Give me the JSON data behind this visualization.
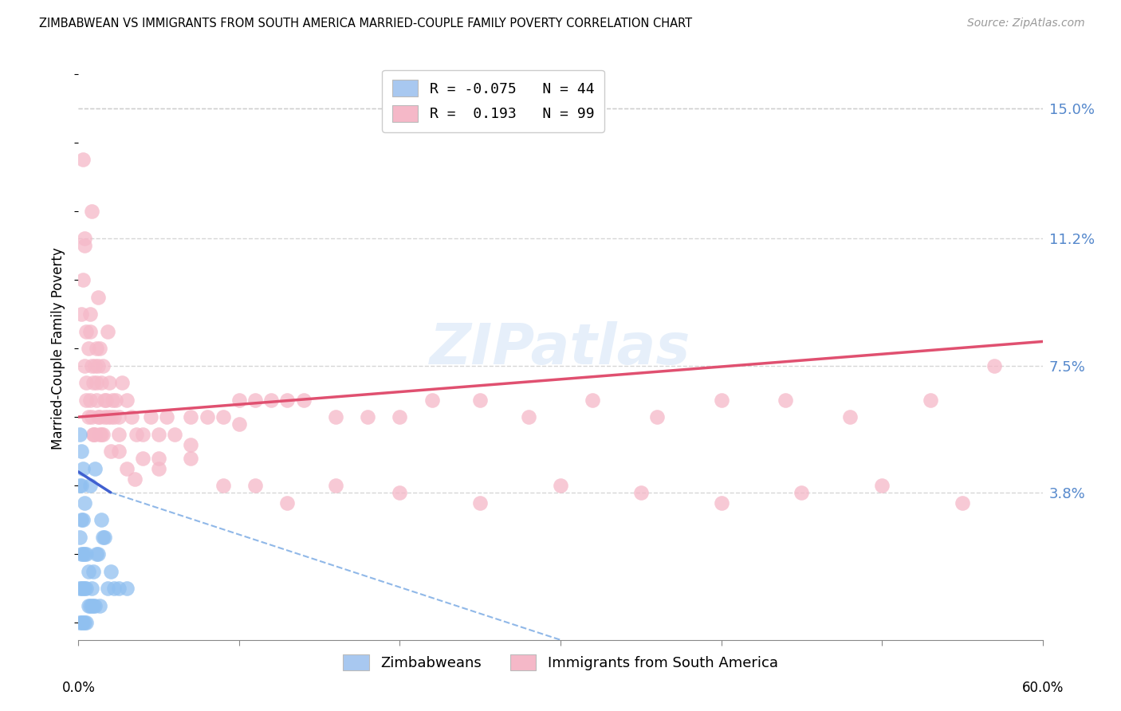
{
  "title": "ZIMBABWEAN VS IMMIGRANTS FROM SOUTH AMERICA MARRIED-COUPLE FAMILY POVERTY CORRELATION CHART",
  "source": "Source: ZipAtlas.com",
  "ylabel": "Married-Couple Family Poverty",
  "yticks": [
    0.0,
    0.038,
    0.075,
    0.112,
    0.15
  ],
  "ytick_labels": [
    "",
    "3.8%",
    "7.5%",
    "11.2%",
    "15.0%"
  ],
  "xlim": [
    0.0,
    0.6
  ],
  "ylim": [
    -0.005,
    0.165
  ],
  "dot_color_zim": "#90c0f0",
  "dot_color_sa": "#f5b8c8",
  "line_color_zim_solid": "#4060d0",
  "line_color_zim_dash": "#90b8e8",
  "line_color_sa": "#e05070",
  "grid_color": "#cccccc",
  "zim_x": [
    0.001,
    0.001,
    0.001,
    0.001,
    0.001,
    0.002,
    0.002,
    0.002,
    0.002,
    0.002,
    0.002,
    0.003,
    0.003,
    0.003,
    0.003,
    0.003,
    0.004,
    0.004,
    0.004,
    0.004,
    0.005,
    0.005,
    0.005,
    0.006,
    0.006,
    0.007,
    0.007,
    0.008,
    0.008,
    0.009,
    0.009,
    0.01,
    0.01,
    0.011,
    0.012,
    0.013,
    0.014,
    0.015,
    0.016,
    0.018,
    0.02,
    0.022,
    0.025,
    0.03
  ],
  "zim_y": [
    0.0,
    0.01,
    0.025,
    0.04,
    0.055,
    0.0,
    0.01,
    0.02,
    0.03,
    0.04,
    0.05,
    0.0,
    0.01,
    0.02,
    0.03,
    0.045,
    0.0,
    0.01,
    0.02,
    0.035,
    0.0,
    0.01,
    0.02,
    0.005,
    0.015,
    0.005,
    0.04,
    0.005,
    0.01,
    0.005,
    0.015,
    0.005,
    0.045,
    0.02,
    0.02,
    0.005,
    0.03,
    0.025,
    0.025,
    0.01,
    0.015,
    0.01,
    0.01,
    0.01
  ],
  "sa_x": [
    0.002,
    0.003,
    0.004,
    0.004,
    0.005,
    0.005,
    0.006,
    0.006,
    0.007,
    0.007,
    0.008,
    0.008,
    0.009,
    0.009,
    0.01,
    0.01,
    0.011,
    0.011,
    0.012,
    0.012,
    0.013,
    0.013,
    0.014,
    0.014,
    0.015,
    0.015,
    0.016,
    0.017,
    0.018,
    0.019,
    0.02,
    0.021,
    0.022,
    0.023,
    0.025,
    0.027,
    0.03,
    0.033,
    0.036,
    0.04,
    0.045,
    0.05,
    0.055,
    0.06,
    0.07,
    0.08,
    0.09,
    0.1,
    0.11,
    0.12,
    0.13,
    0.14,
    0.16,
    0.18,
    0.2,
    0.22,
    0.25,
    0.28,
    0.32,
    0.36,
    0.4,
    0.44,
    0.48,
    0.53,
    0.57,
    0.003,
    0.005,
    0.007,
    0.009,
    0.011,
    0.013,
    0.016,
    0.02,
    0.025,
    0.03,
    0.04,
    0.05,
    0.07,
    0.09,
    0.11,
    0.13,
    0.16,
    0.2,
    0.25,
    0.3,
    0.35,
    0.4,
    0.45,
    0.5,
    0.55,
    0.004,
    0.008,
    0.012,
    0.018,
    0.025,
    0.035,
    0.05,
    0.07,
    0.1
  ],
  "sa_y": [
    0.09,
    0.1,
    0.075,
    0.11,
    0.085,
    0.065,
    0.08,
    0.06,
    0.085,
    0.065,
    0.075,
    0.06,
    0.07,
    0.055,
    0.075,
    0.055,
    0.065,
    0.08,
    0.06,
    0.075,
    0.06,
    0.08,
    0.055,
    0.07,
    0.055,
    0.075,
    0.06,
    0.065,
    0.06,
    0.07,
    0.06,
    0.065,
    0.06,
    0.065,
    0.06,
    0.07,
    0.065,
    0.06,
    0.055,
    0.055,
    0.06,
    0.055,
    0.06,
    0.055,
    0.06,
    0.06,
    0.06,
    0.065,
    0.065,
    0.065,
    0.065,
    0.065,
    0.06,
    0.06,
    0.06,
    0.065,
    0.065,
    0.06,
    0.065,
    0.06,
    0.065,
    0.065,
    0.06,
    0.065,
    0.075,
    0.135,
    0.07,
    0.09,
    0.055,
    0.07,
    0.055,
    0.065,
    0.05,
    0.055,
    0.045,
    0.048,
    0.045,
    0.048,
    0.04,
    0.04,
    0.035,
    0.04,
    0.038,
    0.035,
    0.04,
    0.038,
    0.035,
    0.038,
    0.04,
    0.035,
    0.112,
    0.12,
    0.095,
    0.085,
    0.05,
    0.042,
    0.048,
    0.052,
    0.058
  ],
  "sa_trend_x0": 0.0,
  "sa_trend_y0": 0.06,
  "sa_trend_x1": 0.6,
  "sa_trend_y1": 0.082,
  "zim_trend_solid_x0": 0.0,
  "zim_trend_solid_y0": 0.044,
  "zim_trend_solid_x1": 0.02,
  "zim_trend_solid_y1": 0.038,
  "zim_trend_dash_x0": 0.02,
  "zim_trend_dash_y0": 0.038,
  "zim_trend_dash_x1": 0.3,
  "zim_trend_dash_y1": -0.005
}
